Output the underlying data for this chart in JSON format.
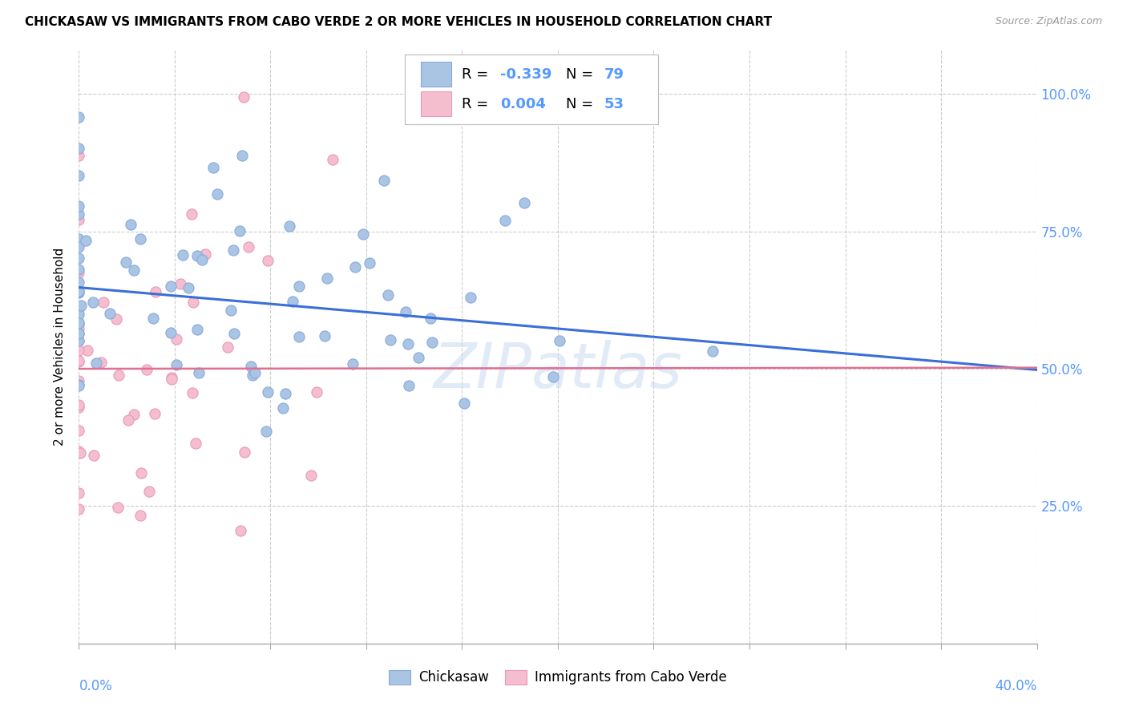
{
  "title": "CHICKASAW VS IMMIGRANTS FROM CABO VERDE 2 OR MORE VEHICLES IN HOUSEHOLD CORRELATION CHART",
  "source": "Source: ZipAtlas.com",
  "ylabel": "2 or more Vehicles in Household",
  "right_yticks": [
    0.25,
    0.5,
    0.75,
    1.0
  ],
  "right_yticklabels": [
    "25.0%",
    "50.0%",
    "75.0%",
    "100.0%"
  ],
  "xlim": [
    0.0,
    0.4
  ],
  "ylim": [
    0.0,
    1.08
  ],
  "blue_R": -0.339,
  "blue_N": 79,
  "pink_R": 0.004,
  "pink_N": 53,
  "blue_face": "#aac4e4",
  "pink_face": "#f5bece",
  "blue_edge": "#88aadd",
  "pink_edge": "#e899bb",
  "blue_line": "#3a6fd8",
  "pink_line": "#e07090",
  "axis_label_color": "#5599ff",
  "watermark": "ZIPatlas",
  "legend_label_blue": "Chickasaw",
  "legend_label_pink": "Immigrants from Cabo Verde",
  "grid_color": "#cccccc",
  "blue_trend_x0": 0.0,
  "blue_trend_y0": 0.648,
  "blue_trend_x1": 0.4,
  "blue_trend_y1": 0.498,
  "pink_trend_x0": 0.0,
  "pink_trend_y0": 0.5,
  "pink_trend_x1": 0.4,
  "pink_trend_y1": 0.502
}
